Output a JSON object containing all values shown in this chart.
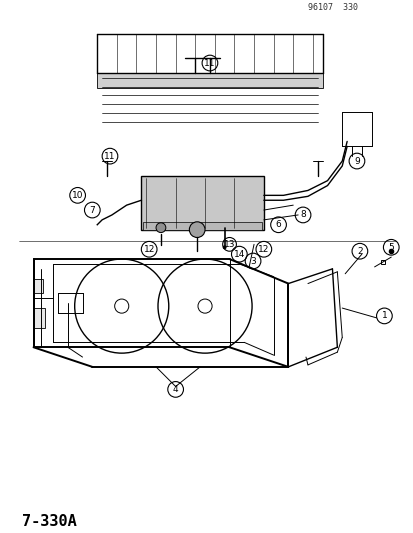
{
  "title_label": "7-330A",
  "background_color": "#ffffff",
  "text_color": "#000000",
  "line_color": "#000000",
  "fig_width": 4.14,
  "fig_height": 5.33,
  "dpi": 100,
  "watermark": "96107  330",
  "part_numbers": [
    1,
    2,
    3,
    4,
    5,
    6,
    7,
    8,
    9,
    10,
    11,
    12,
    13,
    14
  ],
  "diagram_title": "7-330A"
}
